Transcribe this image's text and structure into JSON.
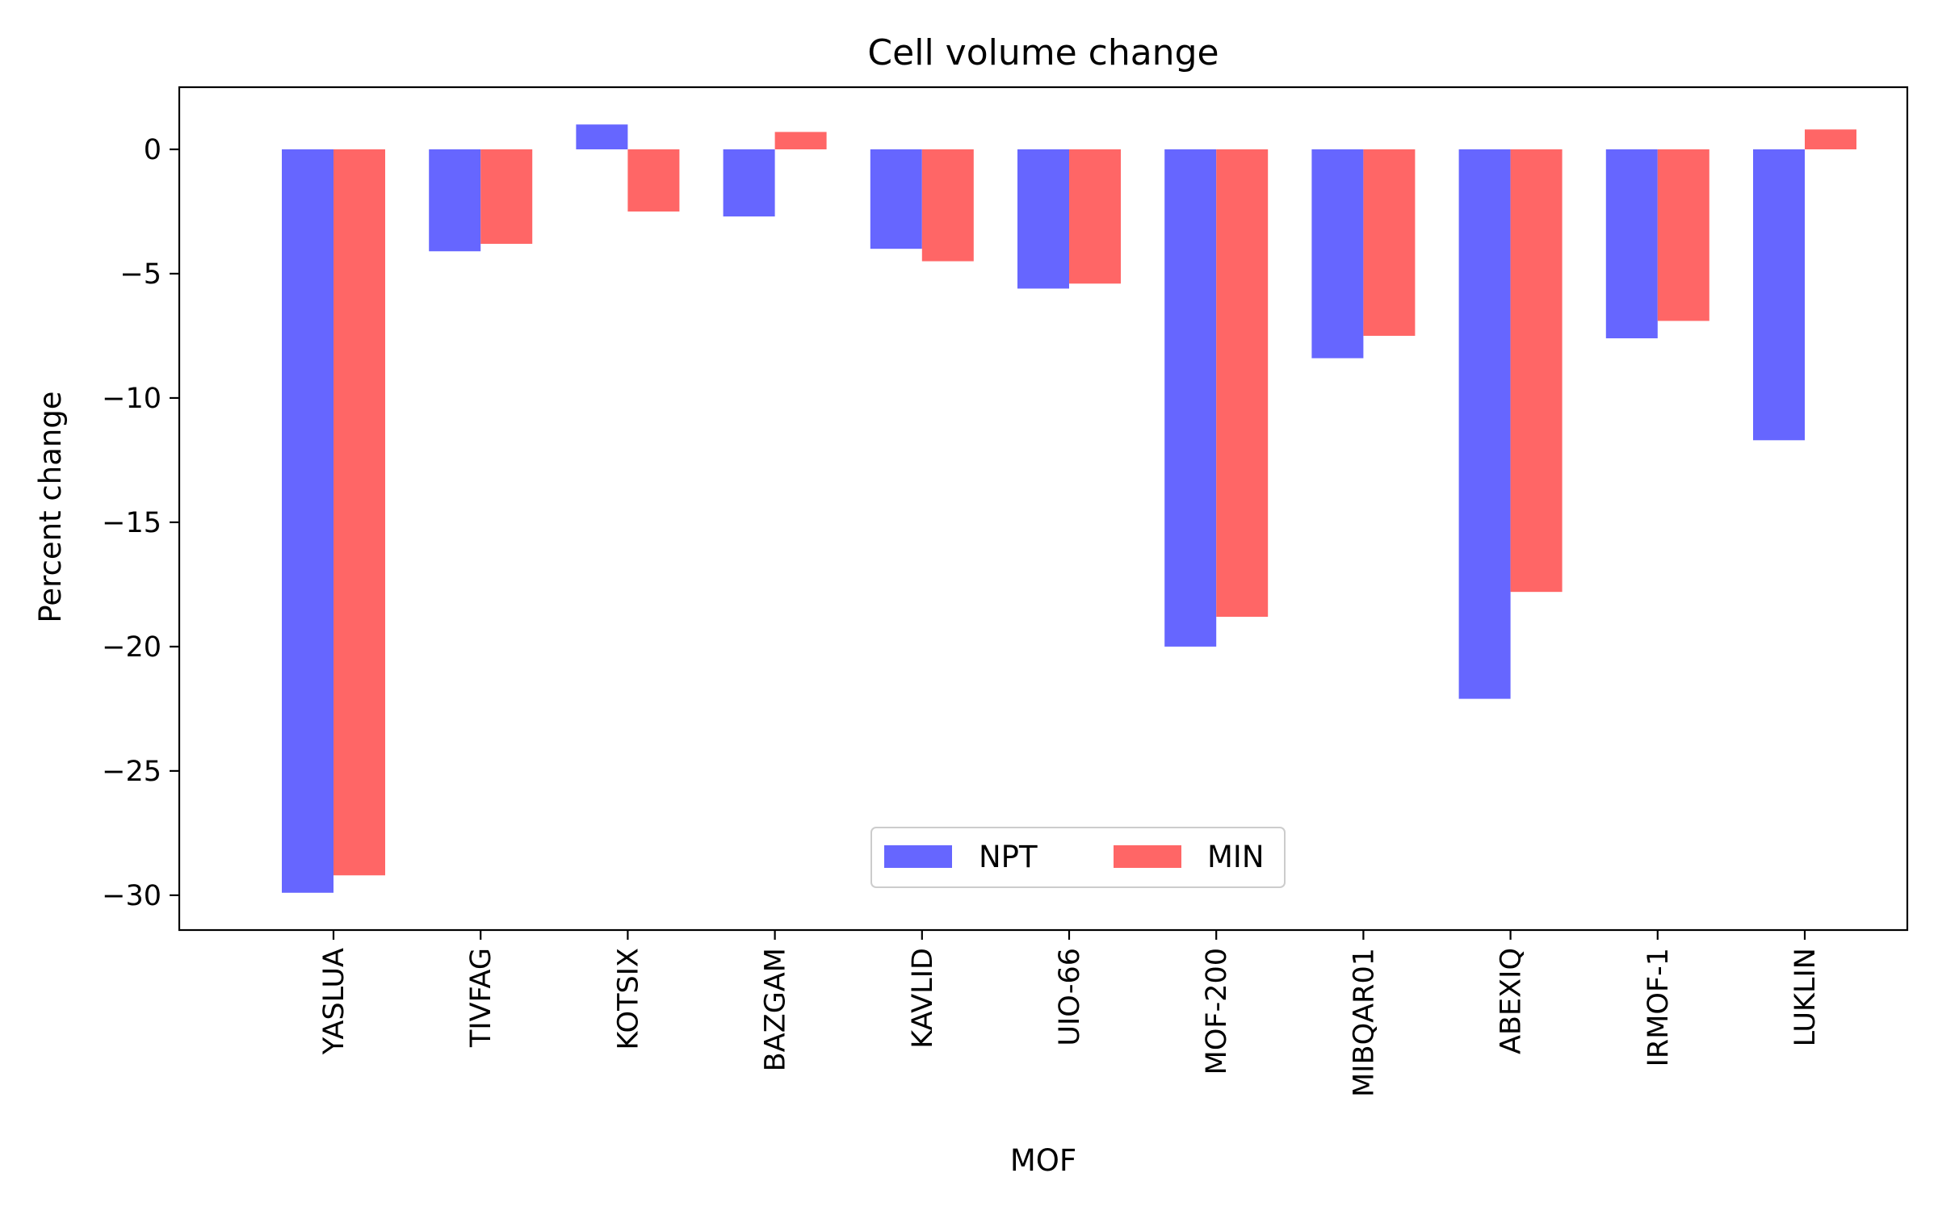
{
  "chart_data": {
    "type": "bar",
    "title": "Cell volume change",
    "xlabel": "MOF",
    "ylabel": "Percent change",
    "categories": [
      "YASLUA",
      "TIVFAG",
      "KOTSIX",
      "BAZGAM",
      "KAVLID",
      "UIO-66",
      "MOF-200",
      "MIBQAR01",
      "ABEXIQ",
      "IRMOF-1",
      "LUKLIN"
    ],
    "series": [
      {
        "name": "NPT",
        "color": "#6666ff",
        "values": [
          -29.9,
          -4.1,
          1.0,
          -2.7,
          -4.0,
          -5.6,
          -20.0,
          -8.4,
          -22.1,
          -7.6,
          -11.7
        ]
      },
      {
        "name": "MIN",
        "color": "#ff6666",
        "values": [
          -29.2,
          -3.8,
          -2.5,
          0.7,
          -4.5,
          -5.4,
          -18.8,
          -7.5,
          -17.8,
          -6.9,
          0.8
        ]
      }
    ],
    "ylim": [
      -31.4,
      2.5
    ],
    "yticks": [
      0,
      -5,
      -10,
      -15,
      -20,
      -25,
      -30
    ],
    "ytick_labels": [
      "0",
      "−5",
      "−10",
      "−15",
      "−20",
      "−25",
      "−30"
    ],
    "grid": false,
    "legend_position": "lower center"
  }
}
